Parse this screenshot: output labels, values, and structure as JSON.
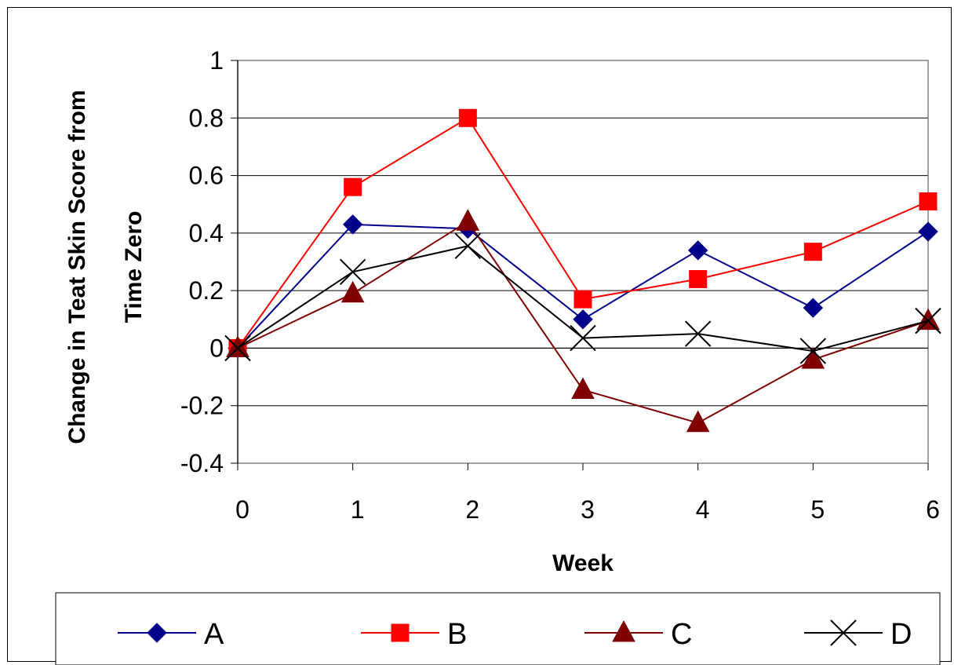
{
  "chart_data": {
    "type": "line",
    "title": "",
    "xlabel": "Week",
    "ylabel_line1": "Change in Teat Skin Score from",
    "ylabel_line2": "Time Zero",
    "x": [
      0,
      1,
      2,
      3,
      4,
      5,
      6
    ],
    "x_tick_labels": [
      "0",
      "1",
      "2",
      "3",
      "4",
      "5",
      "6"
    ],
    "ylim": [
      -0.4,
      1
    ],
    "y_ticks": [
      -0.4,
      -0.2,
      0,
      0.2,
      0.4,
      0.6,
      0.8,
      1
    ],
    "y_tick_labels": [
      "-0.4",
      "-0.2",
      "0",
      "0.2",
      "0.4",
      "0.6",
      "0.8",
      "1"
    ],
    "grid": "horizontal",
    "legend_position": "bottom",
    "series": [
      {
        "name": "A",
        "values": [
          0,
          0.43,
          0.415,
          0.1,
          0.34,
          0.14,
          0.405
        ],
        "color": "#00008B",
        "marker": "diamond"
      },
      {
        "name": "B",
        "values": [
          0,
          0.56,
          0.8,
          0.17,
          0.24,
          0.335,
          0.51
        ],
        "color": "#FF0000",
        "marker": "square"
      },
      {
        "name": "C",
        "values": [
          0,
          0.19,
          0.44,
          -0.145,
          -0.26,
          -0.04,
          0.095
        ],
        "color": "#800000",
        "marker": "triangle"
      },
      {
        "name": "D",
        "values": [
          0,
          0.265,
          0.355,
          0.035,
          0.05,
          -0.01,
          0.095
        ],
        "color": "#000000",
        "marker": "x"
      }
    ]
  }
}
